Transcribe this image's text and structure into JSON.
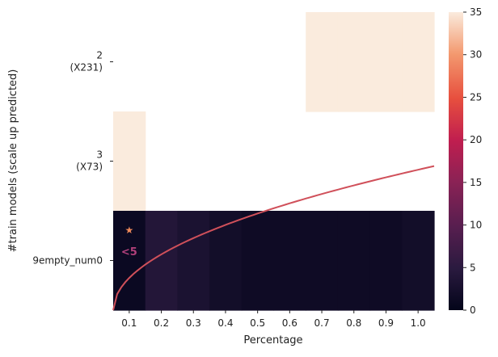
{
  "chart_data": {
    "type": "heatmap",
    "title": "",
    "xlabel": "Percentage",
    "ylabel": "#train models (scale up predicted)",
    "x_categories": [
      "0.1",
      "0.2",
      "0.3",
      "0.4",
      "0.5",
      "0.6",
      "0.7",
      "0.8",
      "0.9",
      "1.0"
    ],
    "y_categories": [
      {
        "line1": "2",
        "line2": "(X231)"
      },
      {
        "line1": "3",
        "line2": "(X73)"
      },
      {
        "line1": "9empty_num0",
        "line2": ""
      }
    ],
    "values": [
      [
        null,
        null,
        null,
        null,
        null,
        null,
        35,
        35,
        35,
        35
      ],
      [
        35,
        null,
        null,
        null,
        null,
        null,
        null,
        null,
        null,
        null
      ],
      [
        1,
        4,
        3,
        2,
        1.5,
        1.5,
        1.5,
        1.5,
        1.5,
        2
      ]
    ],
    "colorbar": {
      "min": 0,
      "max": 35,
      "ticks": [
        "0",
        "5",
        "10",
        "15",
        "20",
        "25",
        "30",
        "35"
      ]
    },
    "curve": {
      "type": "line",
      "color": "#d0505a",
      "x": [
        0.05,
        1.05
      ],
      "shape": "sqrt",
      "y_start": 2.5,
      "y_end": 1.05
    },
    "annotations": [
      {
        "text": "★",
        "x": "0.1",
        "row": 2,
        "position": "upper",
        "color": "#f08a5a"
      },
      {
        "text": "<5",
        "x": "0.1",
        "row": 2,
        "position": "lower",
        "color": "#b0407a"
      }
    ]
  }
}
